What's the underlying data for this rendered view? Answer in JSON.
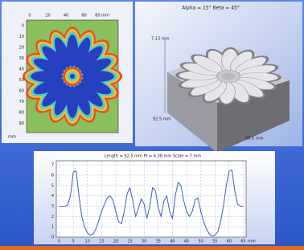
{
  "map": {
    "top_ticks": [
      "0",
      "20",
      "40",
      "60",
      "80 mm"
    ],
    "left_ticks": [
      "0",
      "10",
      "20",
      "30",
      "40",
      "50",
      "60",
      "70",
      "80",
      "90"
    ],
    "left_unit": "mm"
  },
  "view3d": {
    "caption": "Alpha = 15°  Beta = 45°",
    "height_label": "7.13 mm",
    "left_label": "92.5 mm",
    "right_label": "88.5 mm"
  },
  "chart_data": {
    "type": "line",
    "title": "Length = 92.5 mm  Pt = 6.38 mm  Scale = 7 mm",
    "x_unit": "mm",
    "x": [
      0,
      1,
      2,
      3,
      4,
      5,
      6,
      7,
      8,
      9,
      10,
      11,
      12,
      13,
      14,
      15,
      16,
      17,
      18,
      19,
      20,
      21,
      22,
      23,
      24,
      25,
      26,
      27,
      28,
      29,
      30,
      31,
      32,
      33,
      34,
      35,
      36,
      37,
      38,
      39,
      40,
      41,
      42,
      43,
      44,
      45,
      46,
      47,
      48,
      49,
      50,
      51,
      52,
      53,
      54,
      55,
      56,
      57,
      58,
      59,
      60,
      61,
      62,
      63,
      64,
      65
    ],
    "values": [
      3,
      3,
      3,
      3.1,
      4,
      6.3,
      6.4,
      4,
      2,
      1,
      0.4,
      0.2,
      0.3,
      0.8,
      1.6,
      2.5,
      3.2,
      3.8,
      4,
      3.6,
      2.5,
      1.5,
      1.3,
      2.5,
      4.2,
      4.8,
      3.5,
      2,
      2.8,
      3.7,
      3.2,
      1.8,
      3,
      4.8,
      4.5,
      2.8,
      2,
      3.5,
      4,
      2.5,
      1.8,
      4,
      5.3,
      5,
      3.5,
      2.5,
      2,
      2.5,
      3.6,
      3.8,
      2.5,
      1.5,
      0.8,
      0.3,
      0.1,
      0.2,
      0.5,
      1.5,
      3,
      5,
      6.4,
      6.5,
      4.5,
      3.2,
      3,
      3
    ],
    "color": "#3a5fc0",
    "xlim": [
      -1,
      66
    ],
    "ylim": [
      0,
      7.4
    ],
    "xticks": [
      0,
      5,
      10,
      15,
      20,
      25,
      30,
      35,
      40,
      45,
      50,
      55,
      60,
      65
    ],
    "yticks": [
      0,
      1,
      2,
      3,
      4,
      5,
      6,
      7
    ],
    "grid": true
  }
}
